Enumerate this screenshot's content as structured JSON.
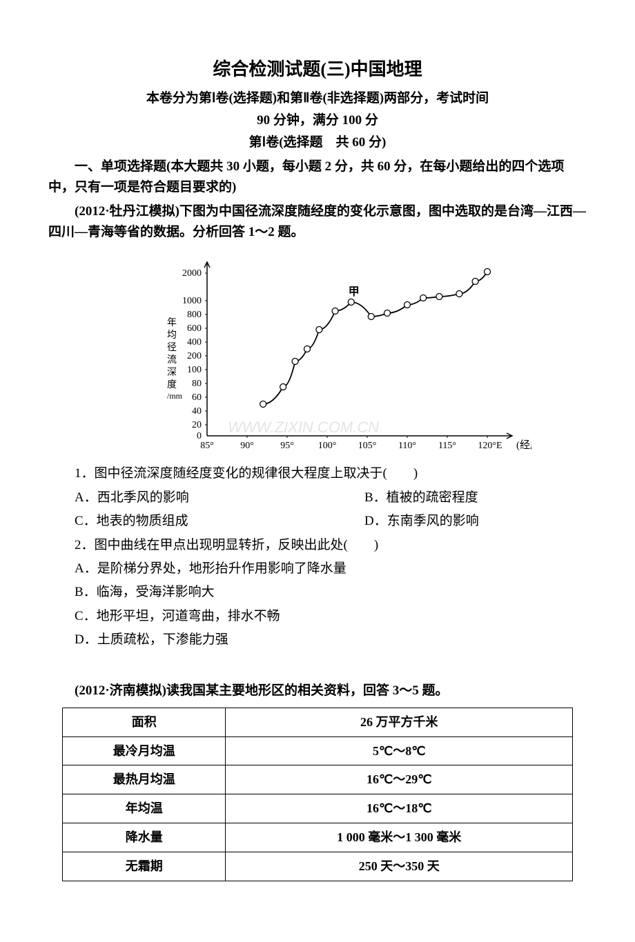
{
  "title": "综合检测试题(三)中国地理",
  "subtitle_line1": "本卷分为第Ⅰ卷(选择题)和第Ⅱ卷(非选择题)两部分，考试时间",
  "subtitle_line2": "90 分钟，满分 100 分",
  "section_header": "第Ⅰ卷(选择题　共 60 分)",
  "instruction_text": "一、单项选择题(本大题共 30 小题，每小题 2 分，共 60 分，在每小题给出的四个选项中，只有一项是符合题目要求的)",
  "context_text": "(2012·牡丹江模拟)下图为中国径流深度随经度的变化示意图，图中选取的是台湾—江西—四川—青海等省的数据。分析回答 1～2 题。",
  "chart": {
    "type": "line-scatter",
    "y_label_lines": [
      "年",
      "均",
      "径",
      "流",
      "深",
      "度",
      "/mm"
    ],
    "y_ticks": [
      "2000",
      "1000",
      "800",
      "600",
      "400",
      "200",
      "100",
      "80",
      "60",
      "40",
      "20",
      "0"
    ],
    "x_ticks": [
      "85°",
      "90°",
      "95°",
      "100°",
      "105°",
      "110°",
      "115°",
      "120°E"
    ],
    "x_label": "(经度)",
    "marker_label": "甲",
    "points": [
      {
        "x": 92,
        "y": 50
      },
      {
        "x": 94.5,
        "y": 75
      },
      {
        "x": 96,
        "y": 160
      },
      {
        "x": 97.5,
        "y": 300
      },
      {
        "x": 99,
        "y": 580
      },
      {
        "x": 101,
        "y": 850
      },
      {
        "x": 103,
        "y": 980
      },
      {
        "x": 105.5,
        "y": 770
      },
      {
        "x": 107.5,
        "y": 820
      },
      {
        "x": 110,
        "y": 940
      },
      {
        "x": 112,
        "y": 1100
      },
      {
        "x": 114,
        "y": 1150
      },
      {
        "x": 116.5,
        "y": 1250
      },
      {
        "x": 118.5,
        "y": 1700
      },
      {
        "x": 120,
        "y": 2050
      }
    ],
    "line_color": "#000000",
    "marker_color": "#ffffff",
    "marker_stroke": "#000000",
    "background_color": "#ffffff"
  },
  "q1": {
    "text": "1．图中径流深度随经度变化的规律很大程度上取决于(　　)",
    "option_a": "A．西北季风的影响",
    "option_b": "B．植被的疏密程度",
    "option_c": "C．地表的物质组成",
    "option_d": "D．东南季风的影响"
  },
  "q2": {
    "text": "2．图中曲线在甲点出现明显转折，反映出此处(　　)",
    "option_a": "A．是阶梯分界处，地形抬升作用影响了降水量",
    "option_b": "B．临海，受海洋影响大",
    "option_c": "C．地形平坦，河道弯曲，排水不畅",
    "option_d": "D．土质疏松，下渗能力强"
  },
  "context_text2": "(2012·济南模拟)读我国某主要地形区的相关资料，回答 3～5 题。",
  "table": {
    "rows": [
      [
        "面积",
        "26 万平方千米"
      ],
      [
        "最冷月均温",
        "5℃～8℃"
      ],
      [
        "最热月均温",
        "16℃～29℃"
      ],
      [
        "年均温",
        "16℃～18℃"
      ],
      [
        "降水量",
        "1 000 毫米～1 300 毫米"
      ],
      [
        "无霜期",
        "250 天～350 天"
      ]
    ]
  },
  "watermark": "WWW.ZIXIN.COM.CN"
}
